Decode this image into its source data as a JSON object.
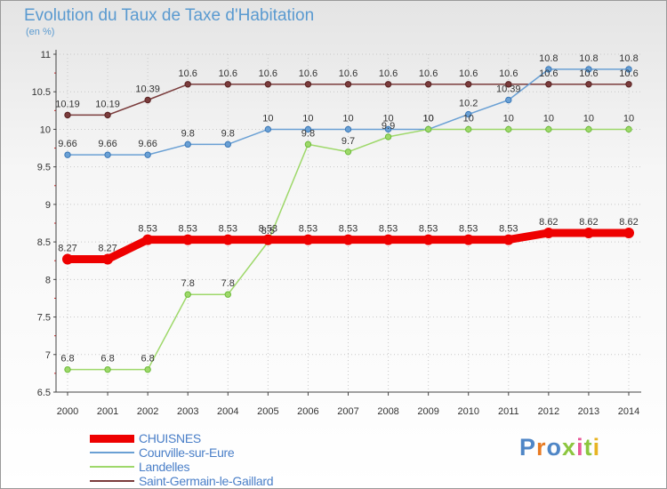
{
  "title": "Evolution du Taux de Taxe d'Habitation",
  "unit": "(en %)",
  "logo": {
    "text": "Proxiti",
    "colors": [
      "#4f86c6",
      "#e87b23",
      "#4f86c6",
      "#8cc63f",
      "#e85a99",
      "#8cc63f",
      "#e8b423"
    ]
  },
  "colors": {
    "grid": "#c8c8c8",
    "axis": "#444444",
    "title": "#5a9ad0"
  },
  "chart_data": {
    "type": "line",
    "title": "Evolution du Taux de Taxe d'Habitation",
    "ylabel": "(en %)",
    "xlabel": "",
    "x": [
      "2000",
      "2001",
      "2002",
      "2003",
      "2004",
      "2005",
      "2006",
      "2007",
      "2008",
      "2009",
      "2010",
      "2011",
      "2012",
      "2013",
      "2014"
    ],
    "ylim": [
      6.5,
      11
    ],
    "yticks": [
      "6.5",
      "7",
      "7.5",
      "8",
      "8.5",
      "9",
      "9.5",
      "10",
      "10.5",
      "11"
    ],
    "legend_position": "bottom-left",
    "series": [
      {
        "name": "CHUISNES",
        "color": "#ee0000",
        "width": 9,
        "values": [
          8.27,
          8.27,
          8.53,
          8.53,
          8.53,
          8.53,
          8.53,
          8.53,
          8.53,
          8.53,
          8.53,
          8.53,
          8.62,
          8.62,
          8.62
        ],
        "labels": [
          "8.27",
          "8.27",
          "8.53",
          "8.53",
          "8.53",
          "8.53",
          "8.53",
          "8.53",
          "8.53",
          "8.53",
          "8.53",
          "8.53",
          "8.62",
          "8.62",
          "8.62"
        ]
      },
      {
        "name": "Courville-sur-Eure",
        "color": "#6aa0d4",
        "marker": "#3a78b8",
        "width": 1.5,
        "values": [
          9.66,
          9.66,
          9.66,
          9.8,
          9.8,
          10,
          10,
          10,
          10,
          10,
          10.2,
          10.39,
          10.8,
          10.8,
          10.8
        ],
        "labels": [
          "9.66",
          "9.66",
          "9.66",
          "9.8",
          "9.8",
          "10",
          "10",
          "10",
          "10",
          "10",
          "10.2",
          "10.39",
          "10.8",
          "10.8",
          "10.8"
        ]
      },
      {
        "name": "Landelles",
        "color": "#9ed86a",
        "marker": "#6cbc3a",
        "width": 1.5,
        "values": [
          6.8,
          6.8,
          6.8,
          7.8,
          7.8,
          8.5,
          9.8,
          9.7,
          9.9,
          10,
          10,
          10,
          10,
          10,
          10
        ],
        "labels": [
          "6.8",
          "6.8",
          "6.8",
          "7.8",
          "7.8",
          "8.5",
          "9.8",
          "9.7",
          "9.9",
          "10",
          "10",
          "10",
          "10",
          "10",
          "10"
        ]
      },
      {
        "name": "Saint-Germain-le-Gaillard",
        "color": "#7a3c3c",
        "marker": "#5a2222",
        "width": 1.5,
        "values": [
          10.19,
          10.19,
          10.39,
          10.6,
          10.6,
          10.6,
          10.6,
          10.6,
          10.6,
          10.6,
          10.6,
          10.6,
          10.6,
          10.6,
          10.6
        ],
        "labels": [
          "10.19",
          "10.19",
          "10.39",
          "10.6",
          "10.6",
          "10.6",
          "10.6",
          "10.6",
          "10.6",
          "10.6",
          "10.6",
          "10.6",
          "10.6",
          "10.6",
          "10.6"
        ]
      }
    ]
  }
}
